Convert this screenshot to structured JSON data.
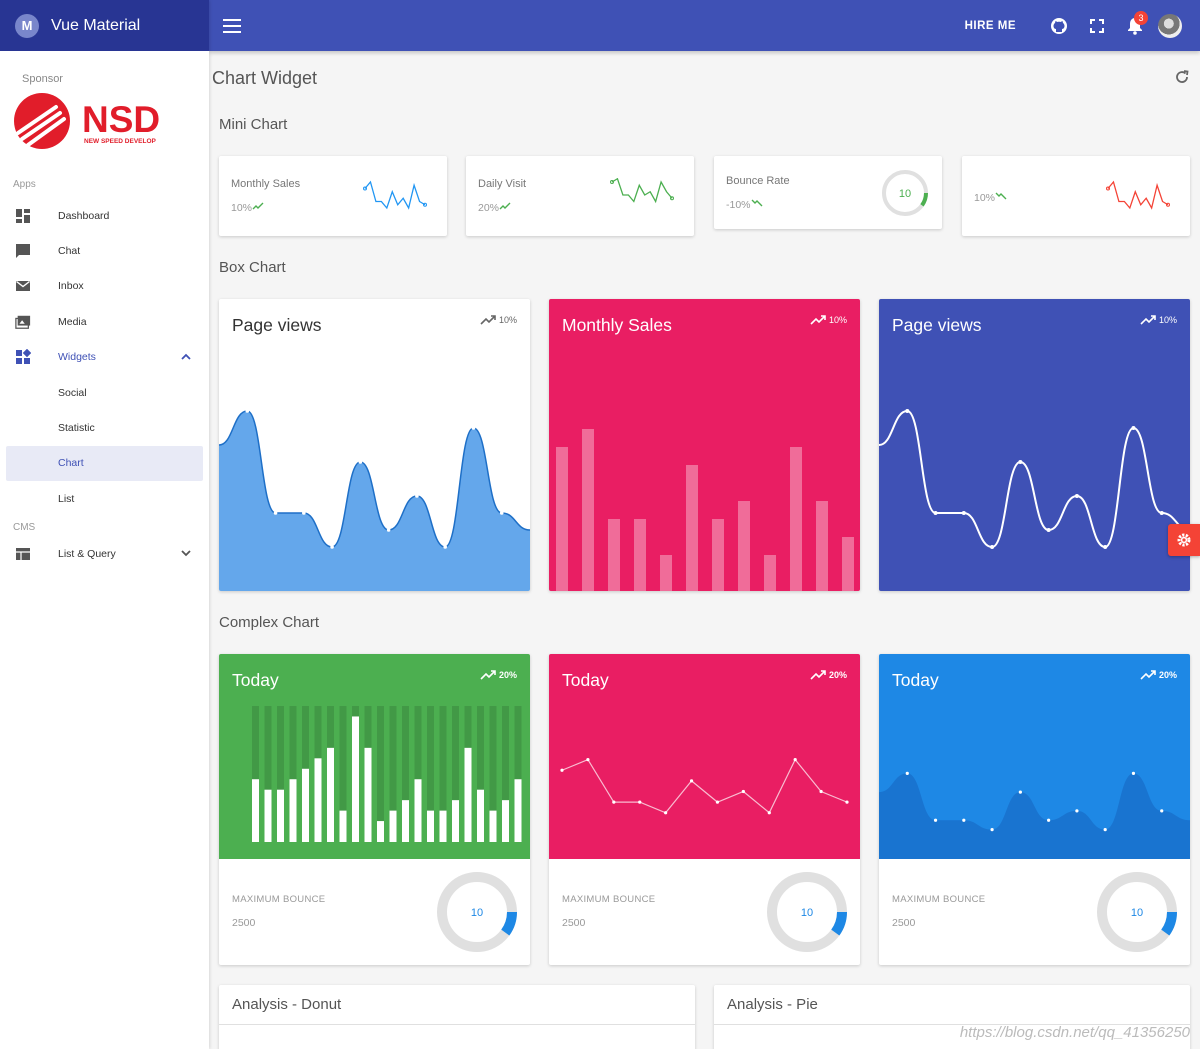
{
  "app": {
    "title": "Vue Material",
    "logo_letter": "M"
  },
  "sidebar": {
    "sponsor_label": "Sponsor",
    "sponsor_logo_text": "NSD",
    "sponsor_logo_tagline": "NEW SPEED DEVELOP",
    "apps_label": "Apps",
    "cms_label": "CMS",
    "items": [
      {
        "label": "Dashboard",
        "icon": "dashboard-icon"
      },
      {
        "label": "Chat",
        "icon": "chat-icon"
      },
      {
        "label": "Inbox",
        "icon": "mail-icon"
      },
      {
        "label": "Media",
        "icon": "media-icon"
      },
      {
        "label": "Widgets",
        "icon": "widgets-icon",
        "expanded": true
      },
      {
        "label": "Social"
      },
      {
        "label": "Statistic"
      },
      {
        "label": "Chart",
        "selected": true
      },
      {
        "label": "List"
      }
    ],
    "cms_items": [
      {
        "label": "List & Query",
        "icon": "table-icon"
      }
    ]
  },
  "topbar": {
    "hire_label": "HIRE ME",
    "notification_count": "3"
  },
  "page": {
    "title": "Chart Widget",
    "sections": {
      "mini": "Mini Chart",
      "box": "Box Chart",
      "complex": "Complex Chart"
    }
  },
  "mini_charts": [
    {
      "label": "Monthly Sales",
      "value": "10%",
      "color": "#2196f3"
    },
    {
      "label": "Daily Visit",
      "value": "20%",
      "color": "#4caf50"
    },
    {
      "label": "Bounce Rate",
      "value": "-10%",
      "color": "#4caf50",
      "ring_value": "10"
    },
    {
      "label": "",
      "value": "10%",
      "color": "#f44336"
    }
  ],
  "box_charts": [
    {
      "title": "Page views",
      "trend": "10%",
      "bg": "#ffffff",
      "fg": "#333333",
      "type": "area"
    },
    {
      "title": "Monthly Sales",
      "trend": "10%",
      "bg": "#e91e63",
      "fg": "#ffffff",
      "type": "bar"
    },
    {
      "title": "Page views",
      "trend": "10%",
      "bg": "#3f51b5",
      "fg": "#ffffff",
      "type": "line"
    }
  ],
  "complex_charts": [
    {
      "title": "Today",
      "trend": "20%",
      "bg": "#4caf50",
      "label": "MAXIMUM BOUNCE",
      "value": "2500",
      "ring_value": "10"
    },
    {
      "title": "Today",
      "trend": "20%",
      "bg": "#e91e63",
      "label": "MAXIMUM BOUNCE",
      "value": "2500",
      "ring_value": "10"
    },
    {
      "title": "Today",
      "trend": "20%",
      "bg": "#1e88e5",
      "label": "MAXIMUM BOUNCE",
      "value": "2500",
      "ring_value": "10"
    }
  ],
  "analysis": [
    {
      "title": "Analysis - Donut"
    },
    {
      "title": "Analysis - Pie"
    }
  ],
  "watermark": "https://blog.csdn.net/qq_41356250",
  "chart_data": [
    {
      "type": "line",
      "title": "Page views",
      "values": [
        6,
        8,
        2,
        2,
        0,
        5,
        1,
        3,
        0,
        7,
        2,
        1
      ]
    },
    {
      "type": "bar",
      "title": "Monthly Sales",
      "values": [
        8,
        9,
        4,
        4,
        2,
        7,
        4,
        5,
        2,
        8,
        5,
        3
      ]
    },
    {
      "type": "line",
      "title": "Page views",
      "values": [
        6,
        8,
        2,
        2,
        0,
        5,
        1,
        3,
        0,
        7,
        2,
        1
      ]
    },
    {
      "type": "bar",
      "title": "Today",
      "values": [
        6,
        5,
        5,
        6,
        7,
        8,
        9,
        3,
        12,
        9,
        2,
        3,
        4,
        6,
        3,
        3,
        4,
        9,
        5,
        3,
        4,
        6
      ],
      "max_values": [
        13,
        13,
        13,
        13,
        13,
        13,
        13,
        13,
        13,
        13,
        13,
        13,
        13,
        13,
        13,
        13,
        13,
        13,
        13,
        13,
        13,
        13
      ]
    },
    {
      "type": "line",
      "title": "Today",
      "values": [
        6,
        7,
        3,
        3,
        2,
        5,
        3,
        4,
        2,
        7,
        4,
        3
      ]
    },
    {
      "type": "area",
      "title": "Today",
      "values": [
        5,
        7,
        2,
        2,
        1,
        5,
        2,
        3,
        1,
        7,
        3,
        2
      ]
    }
  ]
}
